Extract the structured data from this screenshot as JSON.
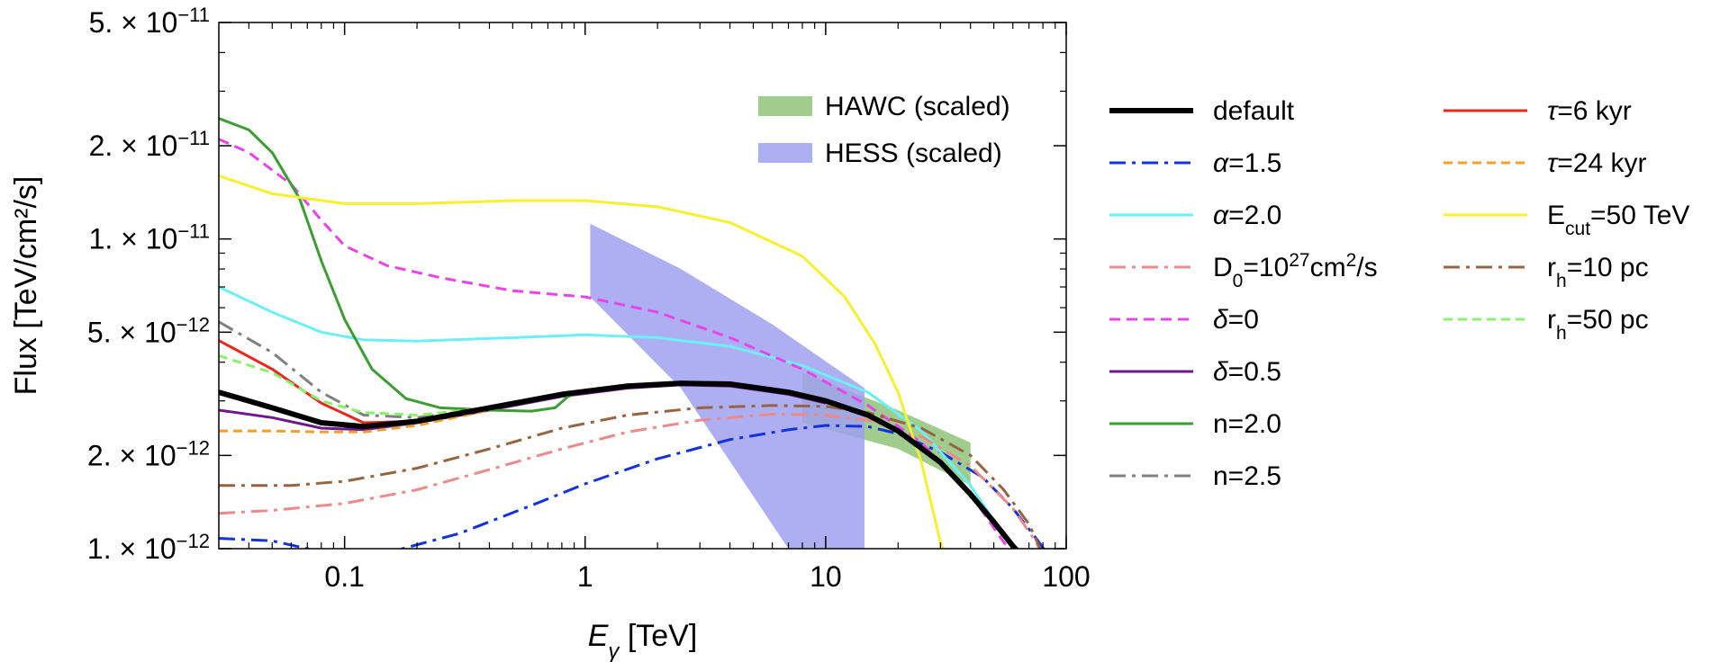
{
  "chart_data": {
    "type": "line",
    "title": "",
    "xlabel": "E_γ [TeV]",
    "xlabel_parts": {
      "symbol": "E",
      "sub": "γ",
      "unit": " [TeV]"
    },
    "ylabel": "Flux [TeV/cm²/s]",
    "xscale": "log",
    "yscale": "log",
    "xlim": [
      0.03,
      100
    ],
    "ylim": [
      1e-12,
      5e-11
    ],
    "grid": false,
    "x_ticks": [
      {
        "value": 0.1,
        "label": "0.1"
      },
      {
        "value": 1,
        "label": "1"
      },
      {
        "value": 10,
        "label": "10"
      },
      {
        "value": 100,
        "label": "100"
      }
    ],
    "y_ticks": [
      {
        "value": 1e-12,
        "mantissa": "1. × 10",
        "exp": "−12"
      },
      {
        "value": 2e-12,
        "mantissa": "2. × 10",
        "exp": "−12"
      },
      {
        "value": 5e-12,
        "mantissa": "5. × 10",
        "exp": "−12"
      },
      {
        "value": 1e-11,
        "mantissa": "1. × 10",
        "exp": "−11"
      },
      {
        "value": 2e-11,
        "mantissa": "2. × 10",
        "exp": "−11"
      },
      {
        "value": 5e-11,
        "mantissa": "5. × 10",
        "exp": "−11"
      }
    ],
    "bands": [
      {
        "name": "HAWC (scaled)",
        "color": "#96c882",
        "opacity": 0.9,
        "upper": [
          [
            8,
            3.7e-12
          ],
          [
            20,
            2.8e-12
          ],
          [
            40,
            2.2e-12
          ]
        ],
        "lower": [
          [
            8,
            2.55e-12
          ],
          [
            20,
            2.1e-12
          ],
          [
            40,
            1.6e-12
          ]
        ]
      },
      {
        "name": "HESS (scaled)",
        "color": "#a0a0f0",
        "opacity": 0.85,
        "upper": [
          [
            1.05,
            1.12e-11
          ],
          [
            2.5,
            8e-12
          ],
          [
            6,
            5.3e-12
          ],
          [
            14.5,
            3.3e-12
          ]
        ],
        "lower": [
          [
            1.05,
            6.5e-12
          ],
          [
            2.5,
            3.3e-12
          ],
          [
            7,
            1e-12
          ],
          [
            14.5,
            1e-12
          ]
        ]
      }
    ],
    "series": [
      {
        "name": "default",
        "label": "default",
        "color": "#000000",
        "width": 6,
        "dash": "",
        "points": [
          [
            0.03,
            3.2e-12
          ],
          [
            0.05,
            2.85e-12
          ],
          [
            0.08,
            2.55e-12
          ],
          [
            0.12,
            2.48e-12
          ],
          [
            0.2,
            2.58e-12
          ],
          [
            0.4,
            2.85e-12
          ],
          [
            0.8,
            3.15e-12
          ],
          [
            1.5,
            3.35e-12
          ],
          [
            2.5,
            3.42e-12
          ],
          [
            4,
            3.4e-12
          ],
          [
            7,
            3.2e-12
          ],
          [
            10,
            3e-12
          ],
          [
            15,
            2.7e-12
          ],
          [
            20,
            2.4e-12
          ],
          [
            30,
            1.9e-12
          ],
          [
            40,
            1.5e-12
          ],
          [
            50,
            1.22e-12
          ],
          [
            60,
            1.02e-12
          ],
          [
            63,
            9.8e-13
          ]
        ]
      },
      {
        "name": "alpha-1.5",
        "label_prefix": "α",
        "label_rest": "=1.5",
        "color": "#1432dc",
        "width": 3,
        "dash": "18 7 4 7",
        "points": [
          [
            0.03,
            1.08e-12
          ],
          [
            0.05,
            1.06e-12
          ],
          [
            0.07,
            1e-12
          ],
          [
            0.1,
            9.5e-13
          ],
          [
            0.15,
            9.7e-13
          ],
          [
            0.3,
            1.12e-12
          ],
          [
            0.6,
            1.38e-12
          ],
          [
            1,
            1.62e-12
          ],
          [
            2,
            1.95e-12
          ],
          [
            4,
            2.25e-12
          ],
          [
            7,
            2.42e-12
          ],
          [
            10,
            2.5e-12
          ],
          [
            15,
            2.48e-12
          ],
          [
            20,
            2.35e-12
          ],
          [
            30,
            2.05e-12
          ],
          [
            45,
            1.7e-12
          ],
          [
            60,
            1.35e-12
          ],
          [
            75,
            1.08e-12
          ],
          [
            82,
            9.8e-13
          ]
        ]
      },
      {
        "name": "alpha-2.0",
        "label_prefix": "α",
        "label_rest": "=2.0",
        "color": "#6cf0f5",
        "width": 3,
        "dash": "",
        "points": [
          [
            0.03,
            7e-12
          ],
          [
            0.05,
            5.8e-12
          ],
          [
            0.08,
            5e-12
          ],
          [
            0.12,
            4.72e-12
          ],
          [
            0.2,
            4.68e-12
          ],
          [
            0.5,
            4.8e-12
          ],
          [
            1,
            4.9e-12
          ],
          [
            2,
            4.8e-12
          ],
          [
            4,
            4.5e-12
          ],
          [
            8,
            3.9e-12
          ],
          [
            15,
            3.2e-12
          ],
          [
            25,
            2.4e-12
          ],
          [
            40,
            1.6e-12
          ],
          [
            55,
            1.1e-12
          ],
          [
            60,
            1e-12
          ]
        ]
      },
      {
        "name": "D0",
        "label_html": "D<tspan baseline-shift='sub' font-size='21'>0</tspan>=10<tspan baseline-shift='super' font-size='21'>27</tspan>cm<tspan baseline-shift='super' font-size='21'>2</tspan>/s",
        "label": "D0=10^27 cm^2/s",
        "color": "#eb8a8a",
        "width": 3,
        "dash": "18 7 4 7",
        "points": [
          [
            0.03,
            1.3e-12
          ],
          [
            0.05,
            1.33e-12
          ],
          [
            0.1,
            1.4e-12
          ],
          [
            0.2,
            1.55e-12
          ],
          [
            0.4,
            1.8e-12
          ],
          [
            0.8,
            2.1e-12
          ],
          [
            1.5,
            2.38e-12
          ],
          [
            3,
            2.6e-12
          ],
          [
            6,
            2.72e-12
          ],
          [
            10,
            2.7e-12
          ],
          [
            15,
            2.6e-12
          ],
          [
            25,
            2.3e-12
          ],
          [
            40,
            1.85e-12
          ],
          [
            60,
            1.35e-12
          ],
          [
            75,
            1.05e-12
          ],
          [
            78,
            9.8e-13
          ]
        ]
      },
      {
        "name": "delta-0",
        "label_prefix": "δ",
        "label_rest": "=0",
        "color": "#e844e8",
        "width": 3,
        "dash": "12 7",
        "points": [
          [
            0.03,
            2.1e-11
          ],
          [
            0.04,
            1.9e-11
          ],
          [
            0.06,
            1.5e-11
          ],
          [
            0.08,
            1.15e-11
          ],
          [
            0.1,
            9.5e-12
          ],
          [
            0.15,
            8.2e-12
          ],
          [
            0.25,
            7.5e-12
          ],
          [
            0.5,
            6.8e-12
          ],
          [
            1,
            6.5e-12
          ],
          [
            2,
            5.8e-12
          ],
          [
            4,
            4.8e-12
          ],
          [
            8,
            3.8e-12
          ],
          [
            15,
            2.9e-12
          ],
          [
            25,
            2.2e-12
          ],
          [
            40,
            1.5e-12
          ],
          [
            55,
            1.05e-12
          ],
          [
            58,
            9.9e-13
          ]
        ]
      },
      {
        "name": "delta-0.5",
        "label_prefix": "δ",
        "label_rest": "=0.5",
        "color": "#6e1a8c",
        "width": 3,
        "dash": "",
        "points": [
          [
            0.03,
            2.8e-12
          ],
          [
            0.05,
            2.65e-12
          ],
          [
            0.08,
            2.45e-12
          ],
          [
            0.12,
            2.42e-12
          ],
          [
            0.2,
            2.55e-12
          ],
          [
            0.4,
            2.8e-12
          ],
          [
            0.8,
            3.1e-12
          ],
          [
            1.5,
            3.3e-12
          ],
          [
            2.5,
            3.38e-12
          ],
          [
            4,
            3.35e-12
          ],
          [
            7,
            3.15e-12
          ],
          [
            10,
            2.95e-12
          ]
        ]
      },
      {
        "name": "n-2.0",
        "label": "n=2.0",
        "color": "#3c9e32",
        "width": 3,
        "dash": "",
        "points": [
          [
            0.03,
            2.45e-11
          ],
          [
            0.04,
            2.25e-11
          ],
          [
            0.05,
            1.9e-11
          ],
          [
            0.065,
            1.35e-11
          ],
          [
            0.08,
            8.5e-12
          ],
          [
            0.1,
            5.5e-12
          ],
          [
            0.13,
            3.8e-12
          ],
          [
            0.18,
            3.05e-12
          ],
          [
            0.25,
            2.85e-12
          ],
          [
            0.4,
            2.8e-12
          ],
          [
            0.6,
            2.78e-12
          ],
          [
            0.75,
            2.85e-12
          ],
          [
            0.85,
            3.1e-12
          ],
          [
            1,
            3.25e-12
          ],
          [
            1.5,
            3.35e-12
          ],
          [
            2.5,
            3.42e-12
          ],
          [
            4,
            3.4e-12
          ]
        ]
      },
      {
        "name": "n-2.5",
        "label": "n=2.5",
        "color": "#808080",
        "width": 3,
        "dash": "18 7 4 7",
        "points": [
          [
            0.03,
            5.4e-12
          ],
          [
            0.05,
            4.3e-12
          ],
          [
            0.08,
            3.2e-12
          ],
          [
            0.12,
            2.7e-12
          ],
          [
            0.2,
            2.65e-12
          ],
          [
            0.4,
            2.85e-12
          ],
          [
            0.8,
            3.15e-12
          ],
          [
            1.5,
            3.35e-12
          ],
          [
            2.5,
            3.42e-12
          ],
          [
            4,
            3.4e-12
          ]
        ]
      },
      {
        "name": "tau-6",
        "label_prefix": "τ",
        "label_rest": "=6 kyr",
        "color": "#e8281e",
        "width": 3,
        "dash": "",
        "points": [
          [
            0.03,
            4.7e-12
          ],
          [
            0.05,
            3.8e-12
          ],
          [
            0.08,
            2.95e-12
          ],
          [
            0.12,
            2.55e-12
          ],
          [
            0.2,
            2.58e-12
          ],
          [
            0.4,
            2.85e-12
          ]
        ]
      },
      {
        "name": "tau-24",
        "label_prefix": "τ",
        "label_rest": "=24 kyr",
        "color": "#f0a032",
        "width": 3,
        "dash": "10 6",
        "points": [
          [
            0.03,
            2.4e-12
          ],
          [
            0.05,
            2.4e-12
          ],
          [
            0.08,
            2.38e-12
          ],
          [
            0.12,
            2.38e-12
          ],
          [
            0.2,
            2.5e-12
          ],
          [
            0.4,
            2.8e-12
          ]
        ]
      },
      {
        "name": "Ecut-50",
        "label_html": "E<tspan baseline-shift='sub' font-size='21'>cut</tspan>=50 TeV",
        "label": "Ecut=50 TeV",
        "color": "#f5f032",
        "width": 3,
        "dash": "",
        "points": [
          [
            0.03,
            1.6e-11
          ],
          [
            0.05,
            1.4e-11
          ],
          [
            0.1,
            1.3e-11
          ],
          [
            0.2,
            1.3e-11
          ],
          [
            0.5,
            1.33e-11
          ],
          [
            1,
            1.33e-11
          ],
          [
            2,
            1.27e-11
          ],
          [
            4,
            1.13e-11
          ],
          [
            8,
            8.8e-12
          ],
          [
            12,
            6.5e-12
          ],
          [
            16,
            4.6e-12
          ],
          [
            20,
            3.2e-12
          ],
          [
            25,
            1.9e-12
          ],
          [
            30,
            1.05e-12
          ],
          [
            31,
            9.8e-13
          ]
        ]
      },
      {
        "name": "rh-10",
        "label_html": "r<tspan baseline-shift='sub' font-size='21'>h</tspan>=10 pc",
        "label": "rh=10 pc",
        "color": "#966440",
        "width": 3,
        "dash": "18 7 4 7",
        "points": [
          [
            0.03,
            1.6e-12
          ],
          [
            0.06,
            1.6e-12
          ],
          [
            0.1,
            1.65e-12
          ],
          [
            0.2,
            1.82e-12
          ],
          [
            0.4,
            2.1e-12
          ],
          [
            0.8,
            2.45e-12
          ],
          [
            1.5,
            2.7e-12
          ],
          [
            3,
            2.85e-12
          ],
          [
            6,
            2.9e-12
          ],
          [
            10,
            2.88e-12
          ],
          [
            15,
            2.75e-12
          ],
          [
            25,
            2.45e-12
          ],
          [
            40,
            2e-12
          ],
          [
            55,
            1.55e-12
          ],
          [
            70,
            1.2e-12
          ],
          [
            78,
            1e-12
          ]
        ]
      },
      {
        "name": "rh-50",
        "label_html": "r<tspan baseline-shift='sub' font-size='21'>h</tspan>=50 pc",
        "label": "rh=50 pc",
        "color": "#8cf06e",
        "width": 3,
        "dash": "10 6",
        "points": [
          [
            0.03,
            4.2e-12
          ],
          [
            0.05,
            3.7e-12
          ],
          [
            0.08,
            3e-12
          ],
          [
            0.12,
            2.75e-12
          ],
          [
            0.2,
            2.7e-12
          ],
          [
            0.4,
            2.85e-12
          ],
          [
            0.8,
            3.15e-12
          ],
          [
            1.5,
            3.38e-12
          ],
          [
            2.5,
            3.45e-12
          ],
          [
            4,
            3.42e-12
          ]
        ]
      }
    ],
    "legend": {
      "placement": "right of plot",
      "columns": [
        [
          "default",
          "alpha-1.5",
          "alpha-2.0",
          "D0",
          "delta-0",
          "delta-0.5",
          "n-2.0",
          "n-2.5"
        ],
        [
          "tau-6",
          "tau-24",
          "Ecut-50",
          "rh-10",
          "rh-50"
        ]
      ]
    },
    "inset_legend": {
      "placement": "top-right inside plot",
      "items": [
        {
          "band": "HAWC (scaled)",
          "label": "HAWC (scaled)"
        },
        {
          "band": "HESS (scaled)",
          "label": "HESS (scaled)"
        }
      ]
    }
  }
}
